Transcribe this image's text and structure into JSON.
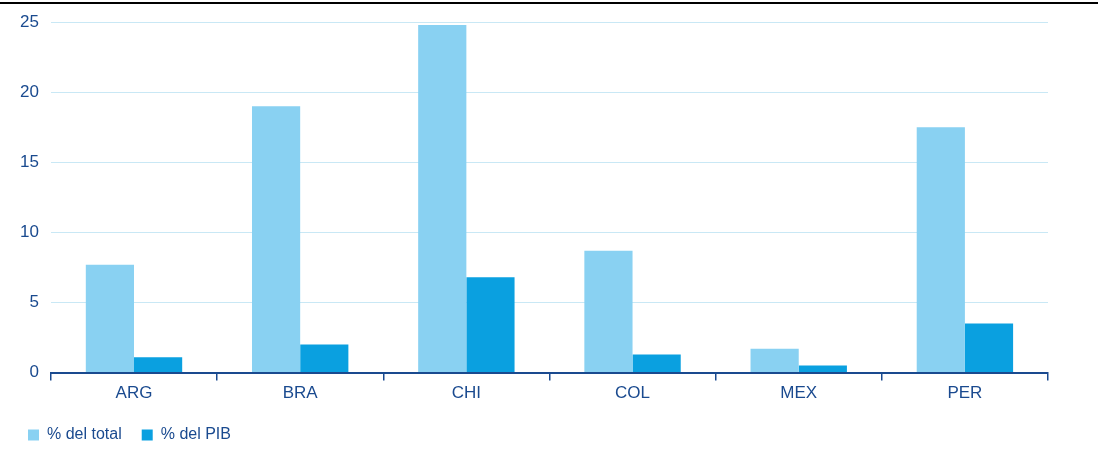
{
  "chart_data": {
    "type": "bar",
    "categories": [
      "ARG",
      "BRA",
      "CHI",
      "COL",
      "MEX",
      "PER"
    ],
    "series": [
      {
        "name": "% del total",
        "color": "#89d1f2",
        "values": [
          7.7,
          19.0,
          24.8,
          8.7,
          1.7,
          17.5
        ]
      },
      {
        "name": "% del PIB",
        "color": "#0aa0e0",
        "values": [
          1.1,
          2.0,
          6.8,
          1.3,
          0.5,
          3.5
        ]
      }
    ],
    "ylim": [
      0,
      25
    ],
    "yticks": [
      0,
      5,
      10,
      15,
      20,
      25
    ],
    "grid": "y",
    "legend": "bottom left"
  }
}
